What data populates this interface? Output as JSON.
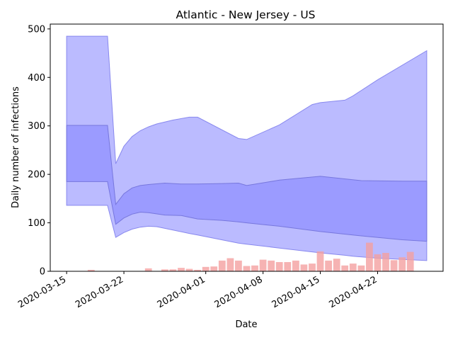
{
  "chart_data": {
    "type": "area",
    "title": "Atlantic - New Jersey - US",
    "xlabel": "Date",
    "ylabel": "Daily number of infections",
    "ylim": [
      0,
      510
    ],
    "xlim": [
      "2020-03-13",
      "2020-04-30"
    ],
    "yticks": [
      0,
      100,
      200,
      300,
      400,
      500
    ],
    "xticks": [
      "2020-03-15",
      "2020-03-22",
      "2020-04-01",
      "2020-04-08",
      "2020-04-15",
      "2020-04-22"
    ],
    "grid": false,
    "colors": {
      "outer_band": "#bbbbff",
      "outer_edge": "#8888ee",
      "inner_band": "#9999ff",
      "inner_edge": "#7777dd",
      "bars": "#f4a0a0",
      "bars_overlap": "#d6799a"
    },
    "bands": {
      "outer": [
        {
          "x": "2020-03-15",
          "low": 136,
          "high": 485
        },
        {
          "x": "2020-03-20",
          "low": 136,
          "high": 485
        },
        {
          "x": "2020-03-21",
          "low": 70,
          "high": 222
        },
        {
          "x": "2020-03-22",
          "low": 80,
          "high": 258
        },
        {
          "x": "2020-03-23",
          "low": 87,
          "high": 278
        },
        {
          "x": "2020-03-24",
          "low": 91,
          "high": 290
        },
        {
          "x": "2020-03-25",
          "low": 93,
          "high": 298
        },
        {
          "x": "2020-03-26",
          "low": 92,
          "high": 304
        },
        {
          "x": "2020-03-28",
          "low": 85,
          "high": 312
        },
        {
          "x": "2020-03-30",
          "low": 78,
          "high": 318
        },
        {
          "x": "2020-03-31",
          "low": 75,
          "high": 318
        },
        {
          "x": "2020-04-05",
          "low": 58,
          "high": 274
        },
        {
          "x": "2020-04-06",
          "low": 56,
          "high": 272
        },
        {
          "x": "2020-04-10",
          "low": 48,
          "high": 302
        },
        {
          "x": "2020-04-14",
          "low": 40,
          "high": 344
        },
        {
          "x": "2020-04-15",
          "low": 38,
          "high": 348
        },
        {
          "x": "2020-04-18",
          "low": 33,
          "high": 353
        },
        {
          "x": "2020-04-19",
          "low": 31,
          "high": 362
        },
        {
          "x": "2020-04-22",
          "low": 27,
          "high": 395
        },
        {
          "x": "2020-04-28",
          "low": 22,
          "high": 455
        }
      ],
      "inner": [
        {
          "x": "2020-03-15",
          "low": 185,
          "high": 301
        },
        {
          "x": "2020-03-20",
          "low": 185,
          "high": 301
        },
        {
          "x": "2020-03-21",
          "low": 97,
          "high": 138
        },
        {
          "x": "2020-03-22",
          "low": 110,
          "high": 160
        },
        {
          "x": "2020-03-23",
          "low": 118,
          "high": 172
        },
        {
          "x": "2020-03-24",
          "low": 122,
          "high": 177
        },
        {
          "x": "2020-03-25",
          "low": 121,
          "high": 179
        },
        {
          "x": "2020-03-27",
          "low": 116,
          "high": 182
        },
        {
          "x": "2020-03-29",
          "low": 115,
          "high": 180
        },
        {
          "x": "2020-03-31",
          "low": 108,
          "high": 180
        },
        {
          "x": "2020-04-03",
          "low": 105,
          "high": 181
        },
        {
          "x": "2020-04-05",
          "low": 102,
          "high": 182
        },
        {
          "x": "2020-04-06",
          "low": 100,
          "high": 177
        },
        {
          "x": "2020-04-10",
          "low": 93,
          "high": 188
        },
        {
          "x": "2020-04-15",
          "low": 82,
          "high": 196
        },
        {
          "x": "2020-04-20",
          "low": 73,
          "high": 187
        },
        {
          "x": "2020-04-25",
          "low": 65,
          "high": 186
        },
        {
          "x": "2020-04-28",
          "low": 62,
          "high": 186
        }
      ]
    },
    "bars": [
      {
        "x": "2020-03-18",
        "value": 3
      },
      {
        "x": "2020-03-25",
        "value": 6
      },
      {
        "x": "2020-03-27",
        "value": 4
      },
      {
        "x": "2020-03-28",
        "value": 4
      },
      {
        "x": "2020-03-29",
        "value": 7
      },
      {
        "x": "2020-03-30",
        "value": 5
      },
      {
        "x": "2020-03-31",
        "value": 3
      },
      {
        "x": "2020-04-01",
        "value": 9
      },
      {
        "x": "2020-04-02",
        "value": 10
      },
      {
        "x": "2020-04-03",
        "value": 22
      },
      {
        "x": "2020-04-04",
        "value": 27
      },
      {
        "x": "2020-04-05",
        "value": 22
      },
      {
        "x": "2020-04-06",
        "value": 11
      },
      {
        "x": "2020-04-07",
        "value": 12
      },
      {
        "x": "2020-04-08",
        "value": 24
      },
      {
        "x": "2020-04-09",
        "value": 22
      },
      {
        "x": "2020-04-10",
        "value": 19
      },
      {
        "x": "2020-04-11",
        "value": 19
      },
      {
        "x": "2020-04-12",
        "value": 22
      },
      {
        "x": "2020-04-13",
        "value": 14
      },
      {
        "x": "2020-04-14",
        "value": 16
      },
      {
        "x": "2020-04-15",
        "value": 41
      },
      {
        "x": "2020-04-16",
        "value": 22
      },
      {
        "x": "2020-04-17",
        "value": 26
      },
      {
        "x": "2020-04-18",
        "value": 12
      },
      {
        "x": "2020-04-19",
        "value": 16
      },
      {
        "x": "2020-04-20",
        "value": 12
      },
      {
        "x": "2020-04-21",
        "value": 59
      },
      {
        "x": "2020-04-22",
        "value": 35
      },
      {
        "x": "2020-04-23",
        "value": 38
      },
      {
        "x": "2020-04-24",
        "value": 23
      },
      {
        "x": "2020-04-25",
        "value": 29
      },
      {
        "x": "2020-04-26",
        "value": 40
      }
    ]
  }
}
